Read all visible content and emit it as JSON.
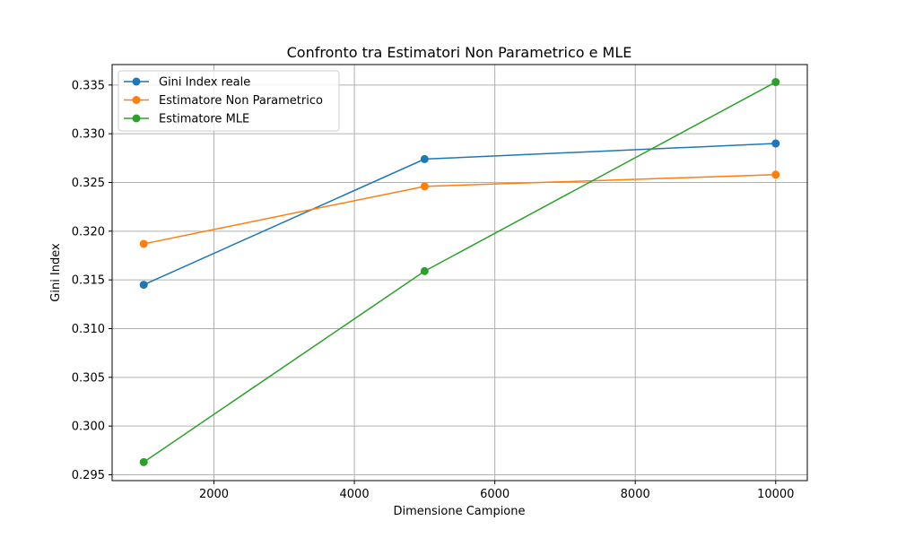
{
  "chart_data": {
    "type": "line",
    "title": "Confronto tra Estimatori Non Parametrico e MLE",
    "xlabel": "Dimensione Campione",
    "ylabel": "Gini Index",
    "x": [
      1000,
      5000,
      10000
    ],
    "xlim": [
      550,
      10450
    ],
    "ylim": [
      0.2944,
      0.3371
    ],
    "xticks": [
      2000,
      4000,
      6000,
      8000,
      10000
    ],
    "xtick_labels": [
      "2000",
      "4000",
      "6000",
      "8000",
      "10000"
    ],
    "yticks": [
      0.295,
      0.3,
      0.305,
      0.31,
      0.315,
      0.32,
      0.325,
      0.33,
      0.335
    ],
    "ytick_labels": [
      "0.295",
      "0.300",
      "0.305",
      "0.310",
      "0.315",
      "0.320",
      "0.325",
      "0.330",
      "0.335"
    ],
    "grid": true,
    "legend_position": "top-left",
    "series": [
      {
        "name": "Gini Index reale",
        "color": "#1f77b4",
        "values": [
          0.3145,
          0.3274,
          0.329
        ]
      },
      {
        "name": "Estimatore Non Parametrico",
        "color": "#ff7f0e",
        "values": [
          0.3187,
          0.3246,
          0.3258
        ]
      },
      {
        "name": "Estimatore MLE",
        "color": "#2ca02c",
        "values": [
          0.2963,
          0.3159,
          0.3353
        ]
      }
    ]
  }
}
